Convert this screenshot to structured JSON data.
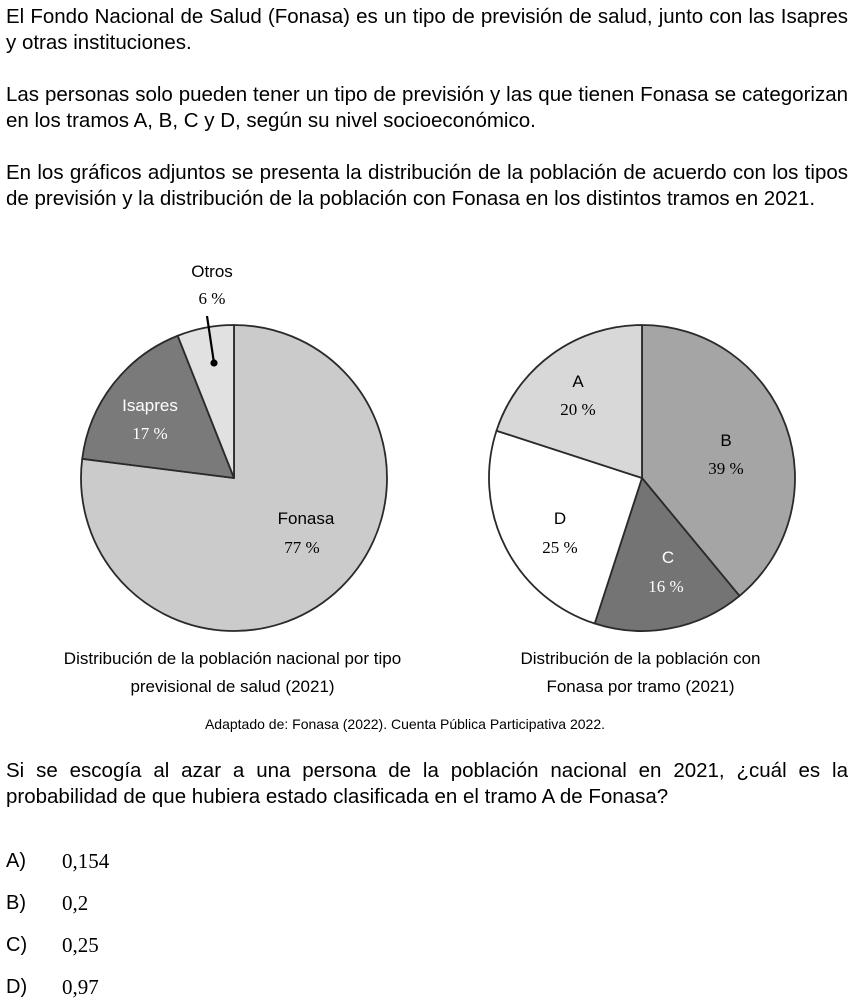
{
  "intro": {
    "p1": "El Fondo Nacional de Salud (Fonasa) es un tipo de previsión de salud, junto con las Isapres y otras instituciones.",
    "p2": "Las personas solo pueden tener un tipo de previsión y las que tienen Fonasa se categorizan en los tramos A, B, C y D, según su nivel socioeconómico.",
    "p3": "En los gráficos adjuntos se presenta la distribución de la población de acuerdo con los tipos de previsión y la distribución de la población con Fonasa en los distintos tramos en 2021."
  },
  "chart_data": [
    {
      "type": "pie",
      "title": "Distribución de la población nacional por tipo previsional de salud (2021)",
      "title_lines": [
        "Distribución de la población nacional por tipo",
        "previsional de salud (2021)"
      ],
      "slices": [
        {
          "label": "Fonasa",
          "value": 77,
          "value_label": "77 %",
          "color": "#cbcbcb"
        },
        {
          "label": "Isapres",
          "value": 17,
          "value_label": "17 %",
          "color": "#7a7a7a"
        },
        {
          "label": "Otros",
          "value": 6,
          "value_label": "6 %",
          "color": "#e1e1e1"
        }
      ]
    },
    {
      "type": "pie",
      "title": "Distribución de la población con Fonasa por tramo (2021)",
      "title_lines": [
        "Distribución de la población con",
        "Fonasa por tramo (2021)"
      ],
      "slices": [
        {
          "label": "B",
          "value": 39,
          "value_label": "39 %",
          "color": "#a5a5a5"
        },
        {
          "label": "C",
          "value": 16,
          "value_label": "16 %",
          "color": "#747474"
        },
        {
          "label": "D",
          "value": 25,
          "value_label": "25 %",
          "color": "#ffffff"
        },
        {
          "label": "A",
          "value": 20,
          "value_label": "20 %",
          "color": "#d8d8d8"
        }
      ]
    }
  ],
  "source": "Adaptado de: Fonasa (2022). Cuenta Pública Participativa 2022.",
  "question": "Si se escogía al azar a una persona de la población nacional en 2021, ¿cuál es la probabilidad de que hubiera estado clasificada en el tramo A de Fonasa?",
  "options": [
    {
      "letter": "A)",
      "value": "0,154"
    },
    {
      "letter": "B)",
      "value": "0,2"
    },
    {
      "letter": "C)",
      "value": "0,25"
    },
    {
      "letter": "D)",
      "value": "0,97"
    }
  ]
}
